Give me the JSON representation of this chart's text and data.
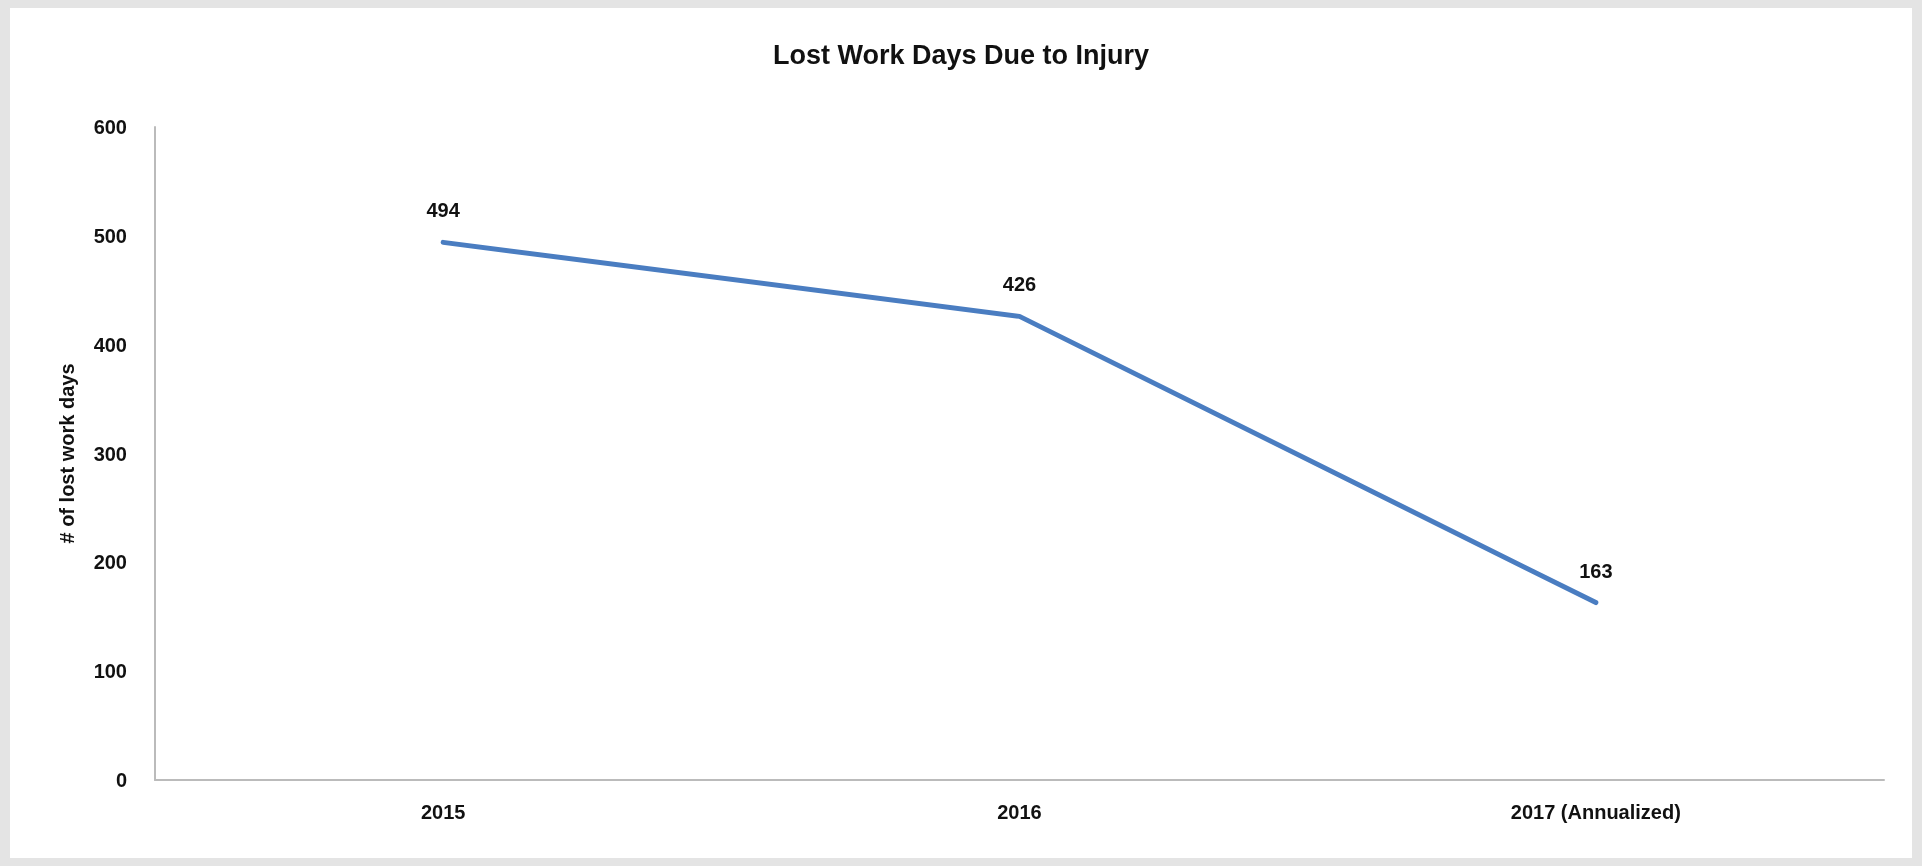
{
  "chart_data": {
    "type": "line",
    "title": "Lost Work Days Due to Injury",
    "ylabel": "# of lost work days",
    "categories": [
      "2015",
      "2016",
      "2017 (Annualized)"
    ],
    "series": [
      {
        "color": "#4a7dc1",
        "values": [
          494,
          426,
          163
        ]
      }
    ],
    "ylim": [
      0,
      600
    ],
    "yticks": [
      0,
      100,
      200,
      300,
      400,
      500,
      600
    ],
    "grid": false,
    "marker": "none",
    "line_style": "solid",
    "data_labels": true
  }
}
